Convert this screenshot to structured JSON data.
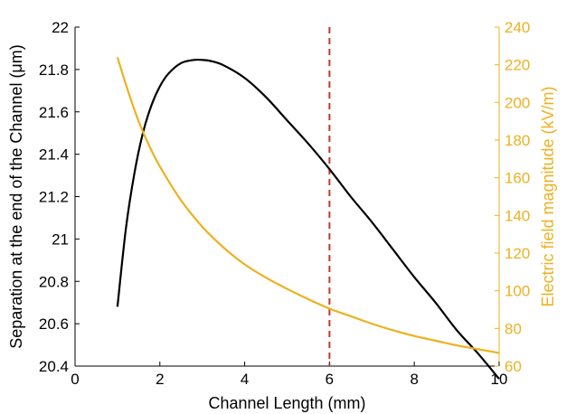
{
  "chart_data": {
    "type": "line",
    "title": "",
    "xlabel": "Channel Length (mm)",
    "ylabel_left": "Separation at the end of the Channel (μm)",
    "ylabel_right": "Electric field magnitude (kV/m)",
    "xlim": [
      0,
      10
    ],
    "ylim_left": [
      20.4,
      22
    ],
    "ylim_right": [
      60,
      240
    ],
    "x_ticks": [
      "0",
      "2",
      "4",
      "6",
      "8",
      "10"
    ],
    "y_left_ticks": [
      "20.4",
      "20.6",
      "20.8",
      "21",
      "21.2",
      "21.4",
      "21.6",
      "21.8",
      "22"
    ],
    "y_right_ticks": [
      "60",
      "80",
      "100",
      "120",
      "140",
      "160",
      "180",
      "200",
      "220",
      "240"
    ],
    "grid": false,
    "legend": "none",
    "colors": {
      "left_series": "#000000",
      "right_series": "#EDB120",
      "vline": "#C0392B"
    },
    "series": [
      {
        "axis": "left",
        "color": "#000000",
        "x": [
          1.0,
          1.2,
          1.4,
          1.6,
          1.8,
          2.0,
          2.2,
          2.5,
          2.8,
          3.0,
          3.2,
          3.5,
          4.0,
          4.5,
          5.0,
          5.5,
          6.0,
          6.5,
          7.0,
          7.5,
          8.0,
          8.5,
          9.0,
          9.5,
          10.0
        ],
        "y": [
          20.68,
          21.05,
          21.31,
          21.5,
          21.63,
          21.72,
          21.78,
          21.83,
          21.845,
          21.845,
          21.84,
          21.82,
          21.76,
          21.67,
          21.56,
          21.45,
          21.33,
          21.2,
          21.08,
          20.95,
          20.82,
          20.7,
          20.57,
          20.46,
          20.34
        ]
      },
      {
        "axis": "right",
        "color": "#EDB120",
        "x": [
          1.0,
          1.25,
          1.5,
          1.75,
          2.0,
          2.5,
          3.0,
          3.5,
          4.0,
          4.5,
          5.0,
          5.5,
          6.0,
          6.5,
          7.0,
          7.5,
          8.0,
          8.5,
          9.0,
          9.5,
          10.0
        ],
        "y": [
          224,
          206,
          190,
          177,
          166,
          148,
          134,
          123,
          114,
          107,
          101,
          95.5,
          90.5,
          86.5,
          82.5,
          79,
          76,
          73.5,
          71,
          69,
          67
        ]
      }
    ],
    "vlines": [
      {
        "x": 6,
        "style": "dashed",
        "color": "#C0392B"
      }
    ]
  }
}
